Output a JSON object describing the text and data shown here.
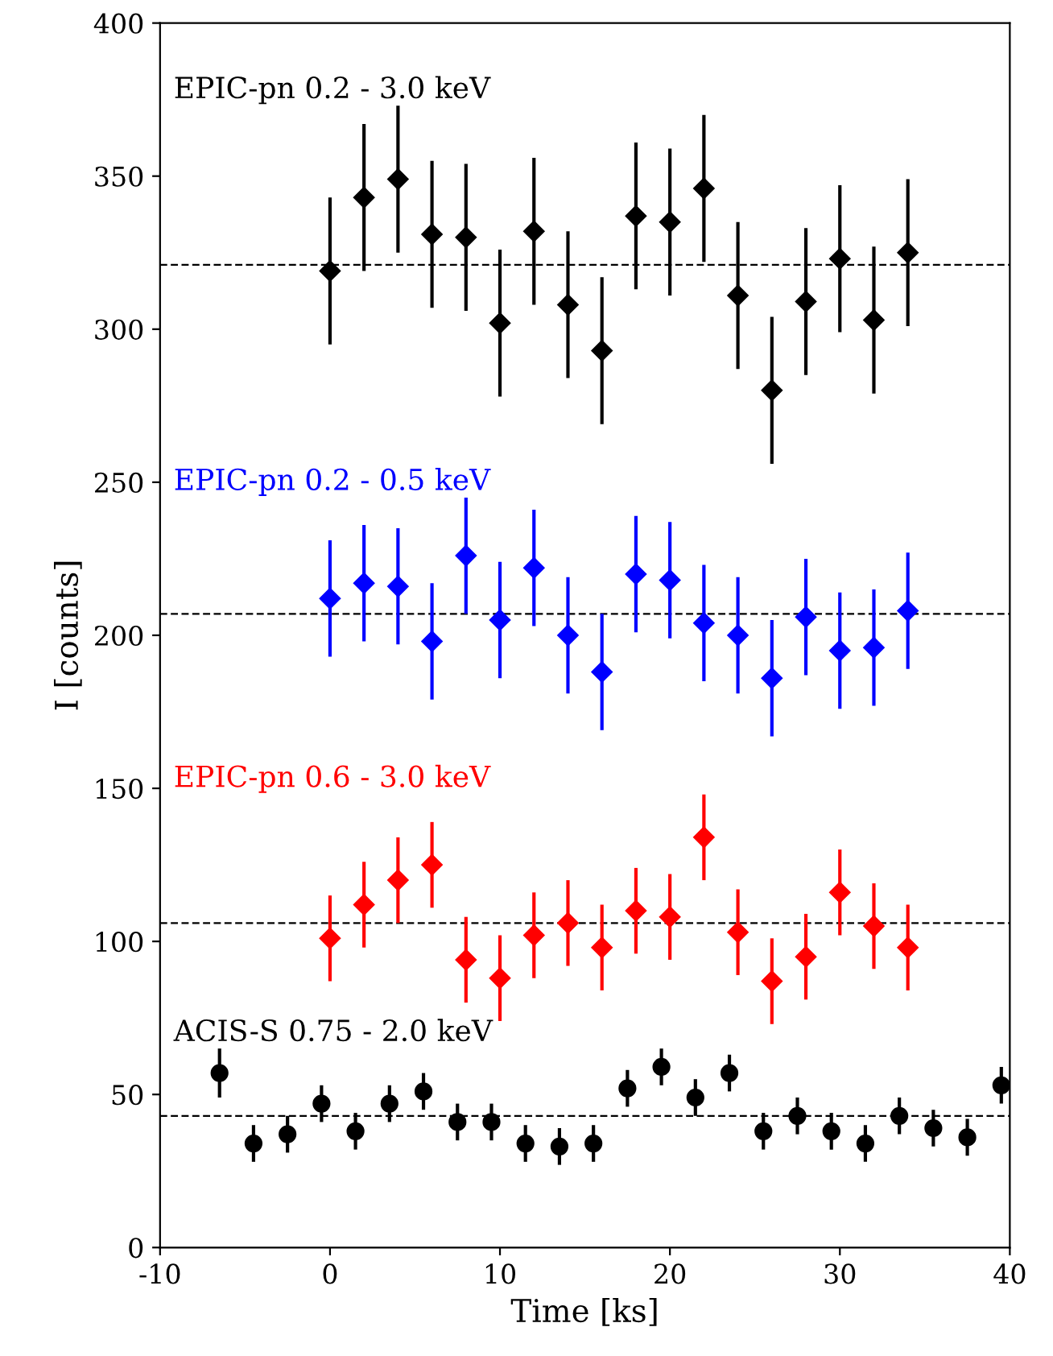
{
  "chart_data": {
    "type": "scatter",
    "xlabel": "Time [ks]",
    "ylabel": "I [counts]",
    "xlim": [
      -10,
      40
    ],
    "ylim": [
      0,
      400
    ],
    "xticks": [
      -10,
      0,
      10,
      20,
      30,
      40
    ],
    "yticks": [
      0,
      50,
      100,
      150,
      200,
      250,
      300,
      350,
      400
    ],
    "grid": false,
    "legend": false,
    "series": [
      {
        "name": "EPIC-pn 0.2 - 3.0 keV",
        "color": "#000000",
        "marker": "diamond",
        "x": [
          0,
          2,
          4,
          6,
          8,
          10,
          12,
          14,
          16,
          18,
          20,
          22,
          24,
          26,
          28,
          30,
          32,
          34
        ],
        "values": [
          319,
          343,
          349,
          331,
          330,
          302,
          332,
          308,
          293,
          337,
          335,
          346,
          311,
          280,
          309,
          323,
          303,
          325
        ],
        "errors": [
          24,
          24,
          24,
          24,
          24,
          24,
          24,
          24,
          24,
          24,
          24,
          24,
          24,
          24,
          24,
          24,
          24,
          24
        ]
      },
      {
        "name": "EPIC-pn 0.2 - 0.5 keV",
        "color": "#0000ff",
        "marker": "diamond",
        "x": [
          0,
          2,
          4,
          6,
          8,
          10,
          12,
          14,
          16,
          18,
          20,
          22,
          24,
          26,
          28,
          30,
          32,
          34
        ],
        "values": [
          212,
          217,
          216,
          198,
          226,
          205,
          222,
          200,
          188,
          220,
          218,
          204,
          200,
          186,
          206,
          195,
          196,
          208
        ],
        "errors": [
          19,
          19,
          19,
          19,
          19,
          19,
          19,
          19,
          19,
          19,
          19,
          19,
          19,
          19,
          19,
          19,
          19,
          19
        ]
      },
      {
        "name": "EPIC-pn 0.6 - 3.0 keV",
        "color": "#ff0000",
        "marker": "diamond",
        "x": [
          0,
          2,
          4,
          6,
          8,
          10,
          12,
          14,
          16,
          18,
          20,
          22,
          24,
          26,
          28,
          30,
          32,
          34
        ],
        "values": [
          101,
          112,
          120,
          125,
          94,
          88,
          102,
          106,
          98,
          110,
          108,
          134,
          103,
          87,
          95,
          116,
          105,
          98
        ],
        "errors": [
          14,
          14,
          14,
          14,
          14,
          14,
          14,
          14,
          14,
          14,
          14,
          14,
          14,
          14,
          14,
          14,
          14,
          14
        ]
      },
      {
        "name": "ACIS-S 0.75 - 2.0 keV",
        "color": "#000000",
        "marker": "circle",
        "x": [
          -6.5,
          -4.5,
          -2.5,
          -0.5,
          1.5,
          3.5,
          5.5,
          7.5,
          9.5,
          11.5,
          13.5,
          15.5,
          17.5,
          19.5,
          21.5,
          23.5,
          25.5,
          27.5,
          29.5,
          31.5,
          33.5,
          35.5,
          37.5,
          39.5
        ],
        "values": [
          57,
          34,
          37,
          47,
          38,
          47,
          51,
          41,
          41,
          34,
          33,
          34,
          52,
          59,
          49,
          57,
          38,
          43,
          38,
          34,
          43,
          39,
          36,
          53
        ],
        "errors": [
          8,
          6,
          6,
          6,
          6,
          6,
          6,
          6,
          6,
          6,
          6,
          6,
          6,
          6,
          6,
          6,
          6,
          6,
          6,
          6,
          6,
          6,
          6,
          6
        ]
      }
    ],
    "ref_lines": [
      {
        "axis": "y",
        "value": 321,
        "color": "#000000",
        "line_style": "dashed"
      },
      {
        "axis": "y",
        "value": 207,
        "color": "#000000",
        "line_style": "dashed"
      },
      {
        "axis": "y",
        "value": 106,
        "color": "#000000",
        "line_style": "dashed"
      },
      {
        "axis": "y",
        "value": 43,
        "color": "#000000",
        "line_style": "dashed"
      }
    ]
  }
}
